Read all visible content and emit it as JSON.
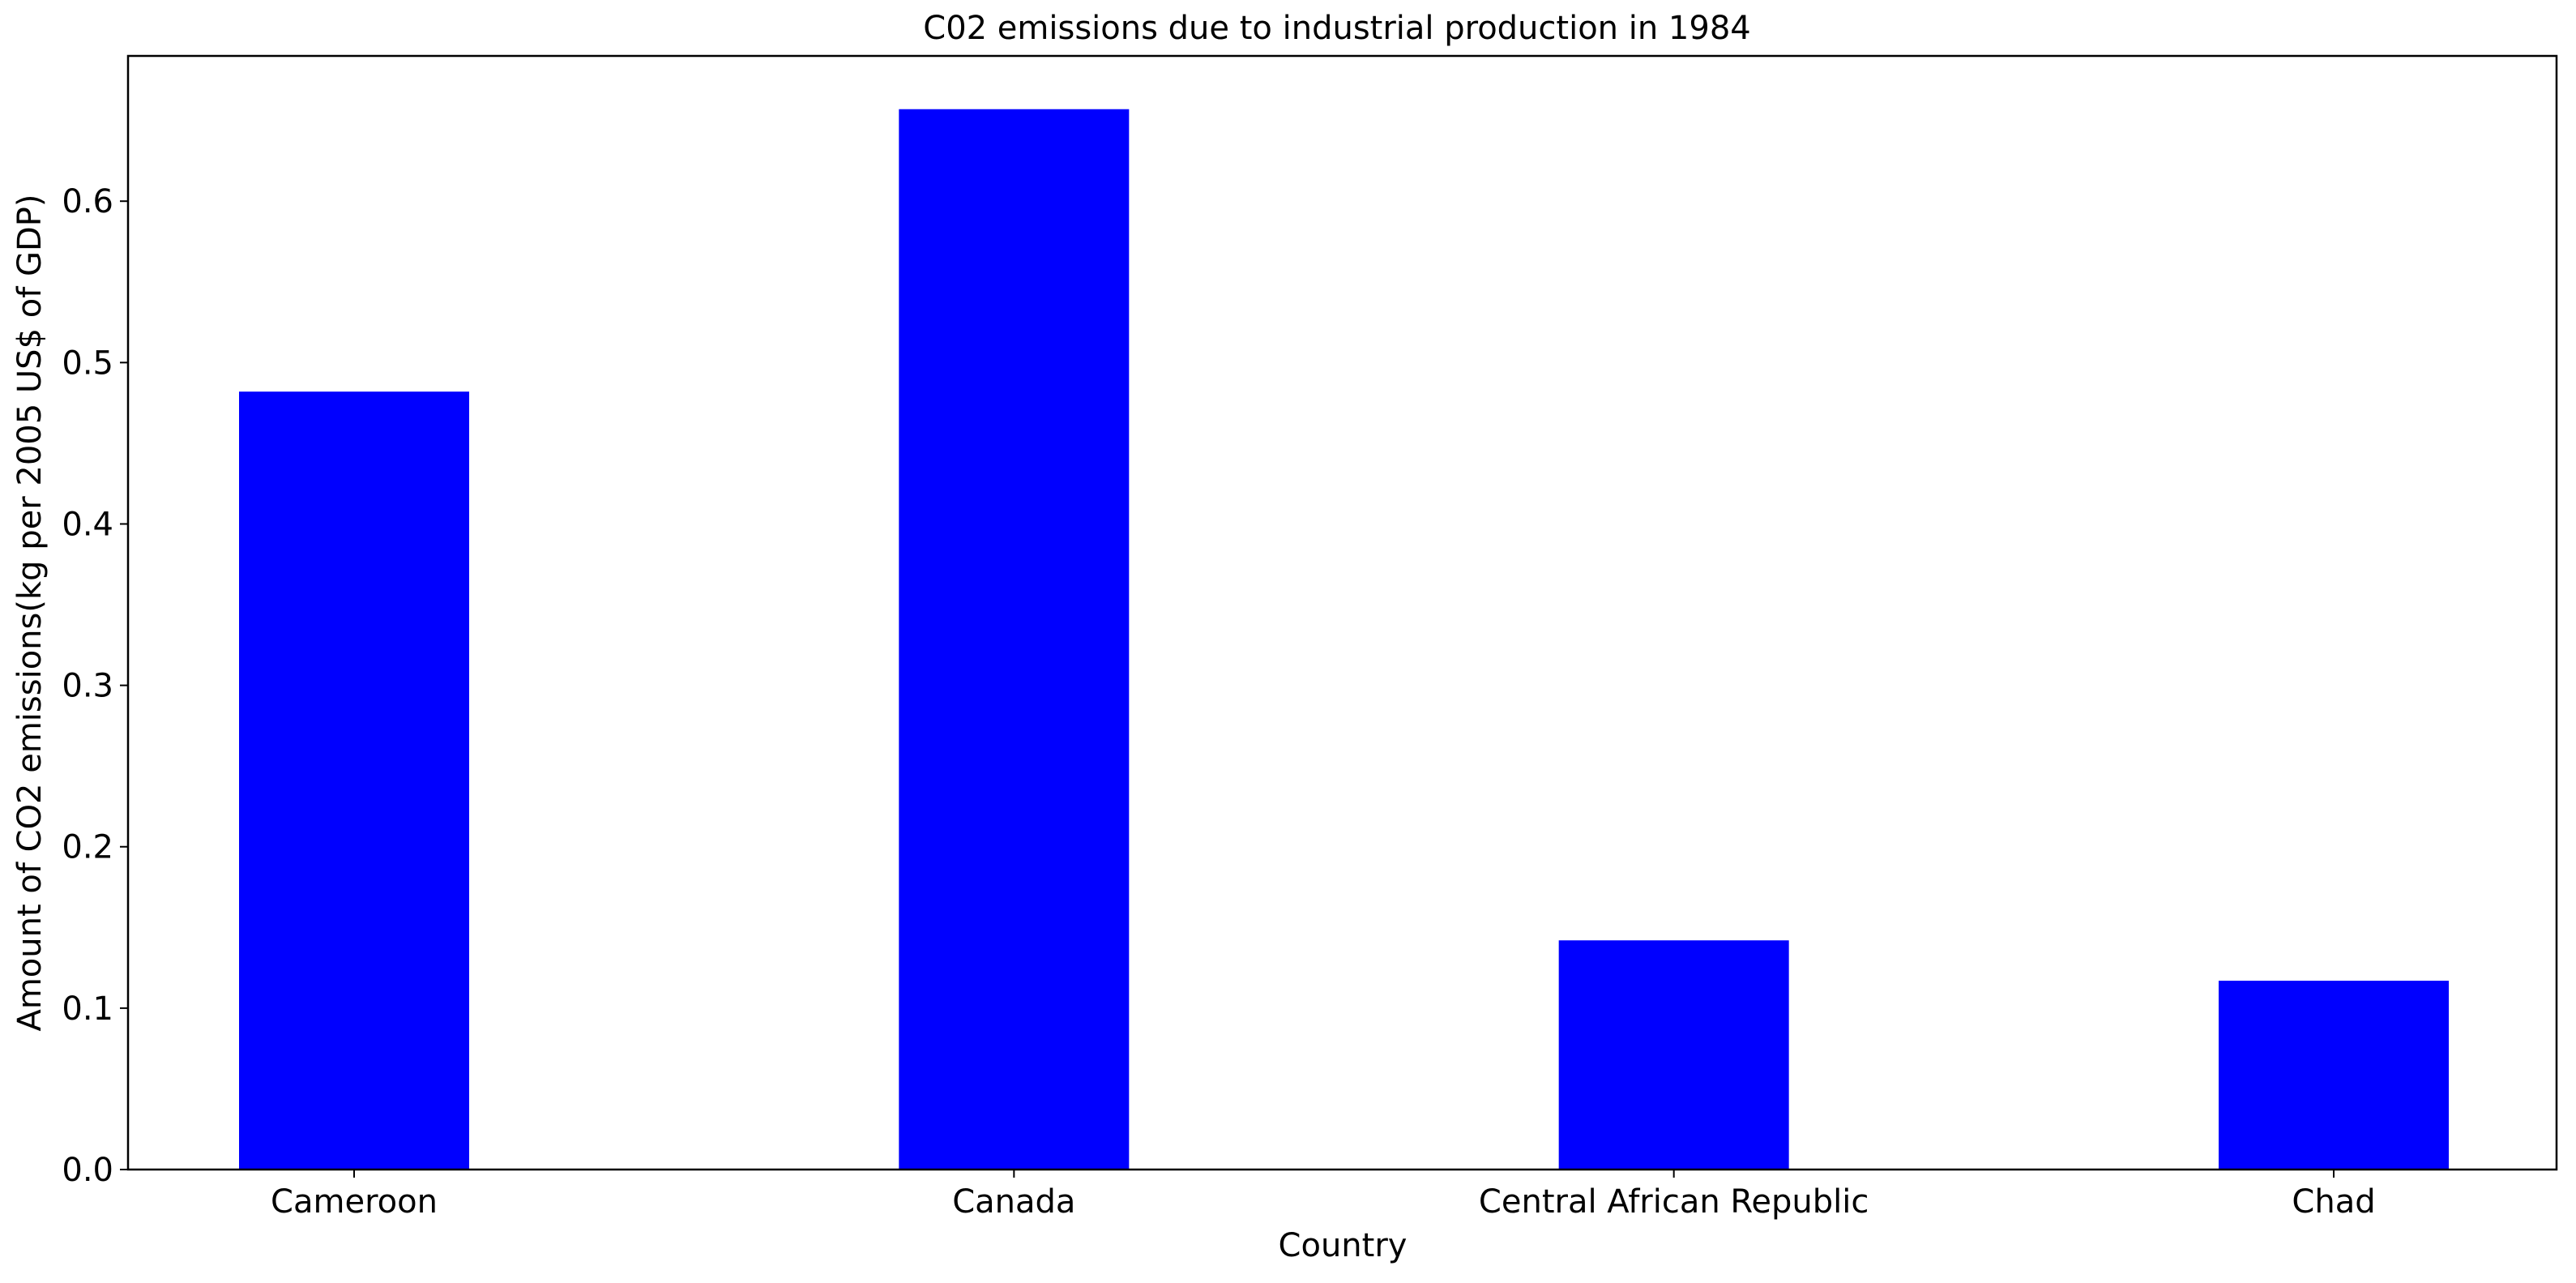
{
  "chart_data": {
    "type": "bar",
    "title": "C02 emissions due to industrial production in 1984",
    "xlabel": "Country",
    "ylabel": "Amount of CO2 emissions(kg per 2005 US$ of GDP)",
    "categories": [
      "Cameroon",
      "Canada",
      "Central African Republic",
      "Chad"
    ],
    "values": [
      0.482,
      0.657,
      0.142,
      0.117
    ],
    "ylim": [
      0,
      0.69
    ],
    "yticks": [
      0.0,
      0.1,
      0.2,
      0.3,
      0.4,
      0.5,
      0.6
    ],
    "ytick_labels": [
      "0.0",
      "0.1",
      "0.2",
      "0.3",
      "0.4",
      "0.5",
      "0.6"
    ],
    "bar_color": "#0000ff",
    "grid": false,
    "legend": "none"
  }
}
